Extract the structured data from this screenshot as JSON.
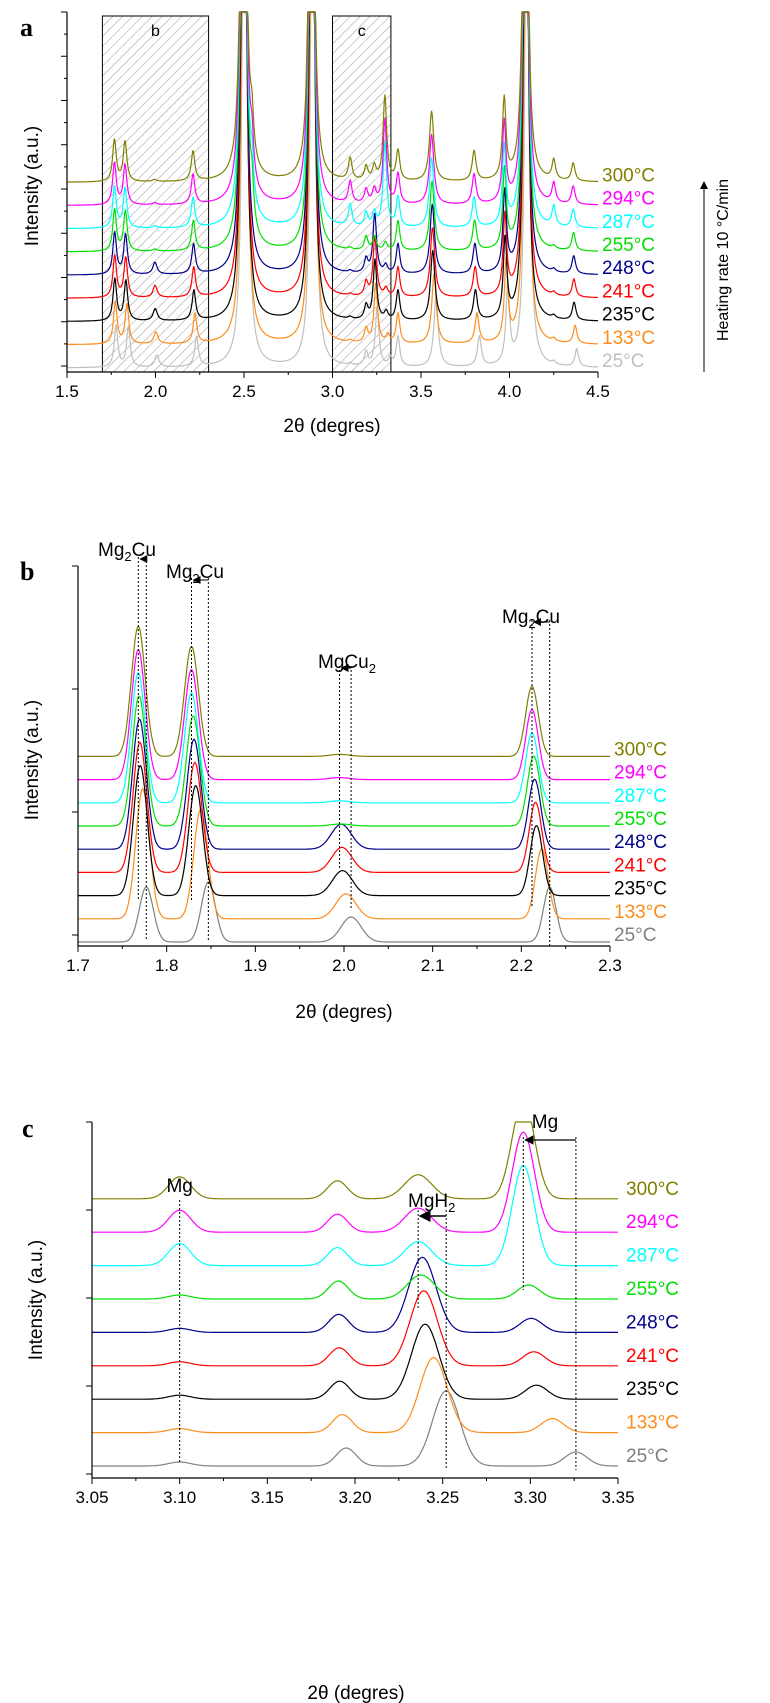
{
  "chart_data": [
    {
      "panel": "a",
      "type": "line",
      "xlabel": "2θ (degres)",
      "ylabel": "Intensity (a.u.)",
      "xlim": [
        1.5,
        4.5
      ],
      "xticks": [
        "1.5",
        "2.0",
        "2.5",
        "3.0",
        "3.5",
        "4.0",
        "4.5"
      ],
      "side_note": "Heating rate 10 °C/min",
      "zoom_boxes": [
        {
          "label": "b",
          "x": [
            1.7,
            2.3
          ]
        },
        {
          "label": "c",
          "x": [
            3.0,
            3.33
          ]
        }
      ],
      "series": [
        {
          "name": "25°C",
          "color": "#c0c0c0"
        },
        {
          "name": "133°C",
          "color": "#ff8c1a"
        },
        {
          "name": "235°C",
          "color": "#000000"
        },
        {
          "name": "241°C",
          "color": "#ff0000"
        },
        {
          "name": "248°C",
          "color": "#00008b"
        },
        {
          "name": "255°C",
          "color": "#00e000"
        },
        {
          "name": "287°C",
          "color": "#00ffff"
        },
        {
          "name": "294°C",
          "color": "#ff00ff"
        },
        {
          "name": "300°C",
          "color": "#808000"
        }
      ]
    },
    {
      "panel": "b",
      "type": "line",
      "xlabel": "2θ (degres)",
      "ylabel": "Intensity (a.u.)",
      "xlim": [
        1.7,
        2.3
      ],
      "xticks": [
        "1.7",
        "1.8",
        "1.9",
        "2.0",
        "2.1",
        "2.2",
        "2.3"
      ],
      "annotations": [
        {
          "text": "Mg2Cu",
          "sub": "2",
          "from": 1.777,
          "to": 1.768
        },
        {
          "text": "Mg2Cu",
          "sub": "2",
          "from": 1.847,
          "to": 1.828
        },
        {
          "text": "MgCu2",
          "sub": "2",
          "from": 2.008,
          "to": 1.995
        },
        {
          "text": "Mg2Cu",
          "sub": "2",
          "from": 2.232,
          "to": 2.212
        }
      ],
      "series": [
        {
          "name": "25°C",
          "color": "#808080"
        },
        {
          "name": "133°C",
          "color": "#ff8c1a"
        },
        {
          "name": "235°C",
          "color": "#000000"
        },
        {
          "name": "241°C",
          "color": "#ff0000"
        },
        {
          "name": "248°C",
          "color": "#00008b"
        },
        {
          "name": "255°C",
          "color": "#00e000"
        },
        {
          "name": "287°C",
          "color": "#00ffff"
        },
        {
          "name": "294°C",
          "color": "#ff00ff"
        },
        {
          "name": "300°C",
          "color": "#808000"
        }
      ]
    },
    {
      "panel": "c",
      "type": "line",
      "xlabel": "2θ (degres)",
      "ylabel": "Intensity (a.u.)",
      "xlim": [
        3.05,
        3.35
      ],
      "xticks": [
        "3.05",
        "3.10",
        "3.15",
        "3.20",
        "3.25",
        "3.30",
        "3.35"
      ],
      "annotations": [
        {
          "text": "Mg",
          "at": 3.1
        },
        {
          "text": "MgH2",
          "sub": "2",
          "from": 3.252,
          "to": 3.236
        },
        {
          "text": "Mg",
          "from": 3.326,
          "to": 3.296
        }
      ],
      "series": [
        {
          "name": "25°C",
          "color": "#808080"
        },
        {
          "name": "133°C",
          "color": "#ff8c1a"
        },
        {
          "name": "235°C",
          "color": "#000000"
        },
        {
          "name": "241°C",
          "color": "#ff0000"
        },
        {
          "name": "248°C",
          "color": "#00008b"
        },
        {
          "name": "255°C",
          "color": "#00e000"
        },
        {
          "name": "287°C",
          "color": "#00ffff"
        },
        {
          "name": "294°C",
          "color": "#ff00ff"
        },
        {
          "name": "300°C",
          "color": "#808000"
        }
      ]
    }
  ],
  "panel_letters": [
    "a",
    "b",
    "c"
  ]
}
